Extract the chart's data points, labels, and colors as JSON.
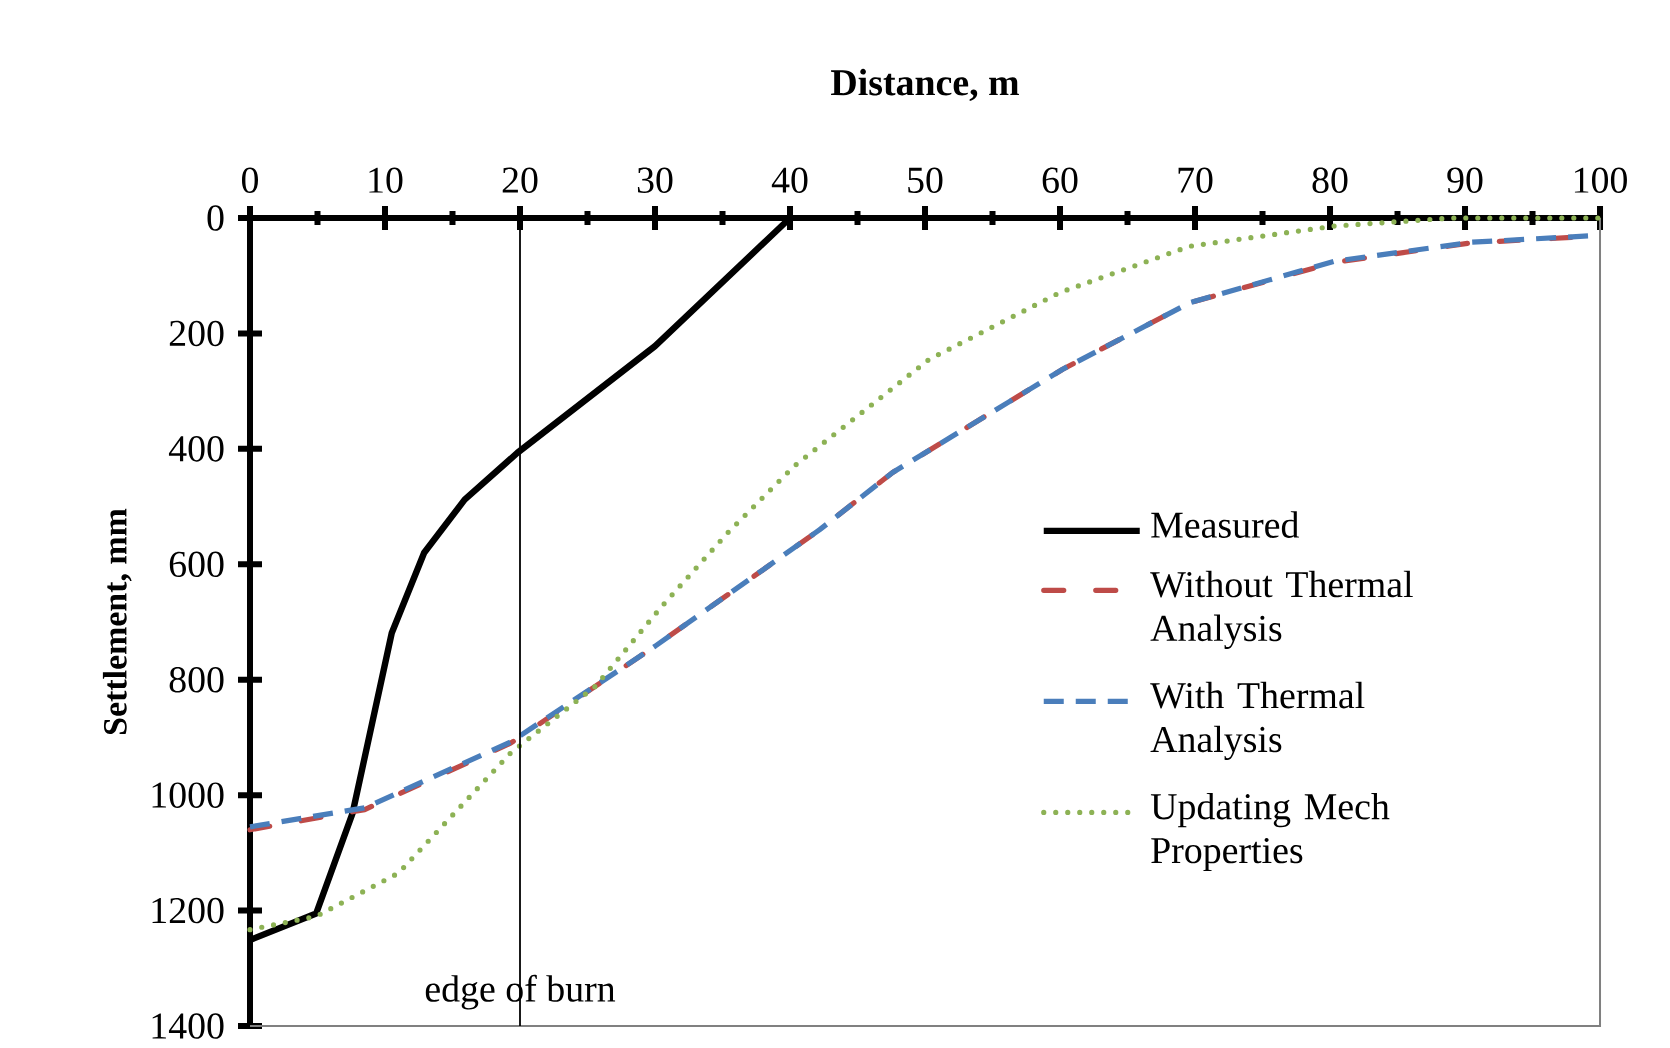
{
  "chart_data": {
    "type": "line",
    "xlabel": "Distance, m",
    "ylabel": "Settlement, mm",
    "xlim": [
      0,
      100
    ],
    "xticks": [
      0,
      10,
      20,
      30,
      40,
      50,
      60,
      70,
      80,
      90,
      100
    ],
    "ylim": [
      1400,
      0
    ],
    "yticks": [
      0,
      200,
      400,
      600,
      800,
      1000,
      1200,
      1400
    ],
    "legend": "right",
    "grid": false,
    "ref_lines": [
      {
        "axis": "x",
        "value": 20,
        "label": "edge of burn",
        "color": "#000000"
      }
    ],
    "series": [
      {
        "name": "Measured",
        "color": "#000000",
        "line_style": "solid",
        "x": [
          0,
          4.9,
          7.6,
          10.5,
          12.9,
          15.9,
          19.8,
          30,
          40
        ],
        "values": [
          1251,
          1205,
          1031,
          719,
          580,
          488,
          407,
          222,
          0
        ]
      },
      {
        "name": "Without Thermal Analysis",
        "color": "#be4b48",
        "line_style": "dashdot",
        "x": [
          0,
          8.5,
          19.3,
          30,
          42.2,
          47.6,
          60.2,
          69.6,
          80.3,
          90.5,
          100
        ],
        "values": [
          1060,
          1025,
          910,
          742,
          540,
          441,
          262,
          147,
          77,
          43,
          31
        ]
      },
      {
        "name": "With Thermal Analysis",
        "color": "#4a7ebb",
        "line_style": "dashed",
        "x": [
          0,
          8.5,
          19.3,
          30,
          42.2,
          47.6,
          60.2,
          69.6,
          80.3,
          90.5,
          100
        ],
        "values": [
          1055,
          1022,
          908,
          742,
          540,
          441,
          262,
          147,
          75,
          42,
          30
        ]
      },
      {
        "name": "Updating Mech Properties",
        "color": "#8db255",
        "line_style": "dotted",
        "x": [
          0,
          4.9,
          11,
          19.3,
          25.6,
          30.5,
          35.4,
          40.3,
          50.3,
          60,
          69.6,
          80.3,
          89,
          100
        ],
        "values": [
          1233,
          1210,
          1135,
          927,
          811,
          673,
          545,
          430,
          245,
          129,
          49,
          14,
          0,
          0
        ]
      }
    ]
  }
}
